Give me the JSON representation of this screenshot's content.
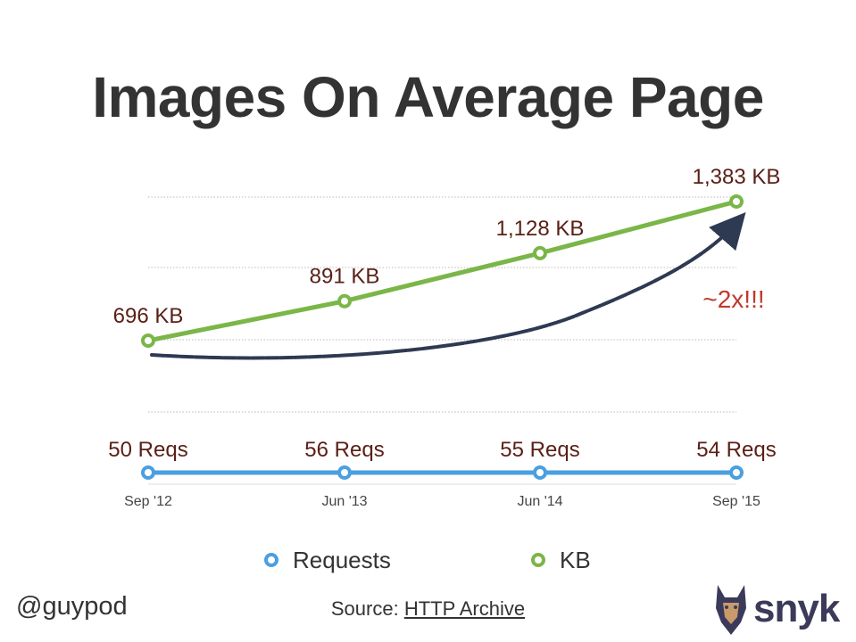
{
  "title": "Images On Average Page",
  "author_handle": "@guypod",
  "source": {
    "prefix": "Source:",
    "link_text": "HTTP Archive"
  },
  "logo_text": "snyk",
  "colors": {
    "kb": "#7ab648",
    "requests": "#4a9fe0",
    "kb_label": "#5a2016",
    "annotation": "#c0392b",
    "arrow": "#2e3a52",
    "text": "#333333"
  },
  "chart_data": {
    "type": "line",
    "title": "Images On Average Page",
    "x": [
      "Sep '12",
      "Jun '13",
      "Jun '14",
      "Sep '15"
    ],
    "series": [
      {
        "name": "KB",
        "values": [
          696,
          891,
          1128,
          1383
        ],
        "labels": [
          "696 KB",
          "891 KB",
          "1,128 KB",
          "1,383 KB"
        ],
        "color": "#7ab648",
        "icon": "ring-marker"
      },
      {
        "name": "Requests",
        "values": [
          50,
          56,
          55,
          54
        ],
        "labels": [
          "50 Reqs",
          "56 Reqs",
          "55 Reqs",
          "54 Reqs"
        ],
        "color": "#4a9fe0",
        "icon": "ring-marker"
      }
    ],
    "kb_range": [
      520,
      1380
    ],
    "legend": {
      "position": "bottom",
      "items": [
        "Requests",
        "KB"
      ]
    },
    "annotation": {
      "text": "~2x!!!"
    },
    "grid": true
  }
}
